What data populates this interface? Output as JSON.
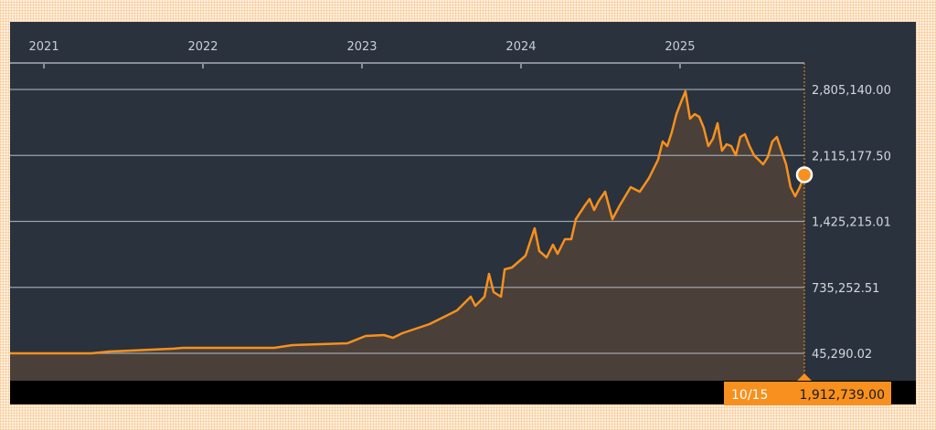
{
  "chart_data": {
    "type": "area",
    "title": "",
    "xlabel": "",
    "ylabel": "",
    "x_ticks": [
      "2021",
      "2022",
      "2023",
      "2024",
      "2025"
    ],
    "y_ticks": [
      "45,290.02",
      "735,252.51",
      "1,425,215.01",
      "2,115,177.50",
      "2,805,140.00"
    ],
    "y_tick_values": [
      45290.02,
      735252.51,
      1425215.01,
      2115177.5,
      2805140.0
    ],
    "ylim": [
      45290.02,
      2805140.0
    ],
    "xlim": [
      2020.787,
      2025.782
    ],
    "grid": true,
    "series": [
      {
        "name": "price",
        "color": "#f7901e",
        "points": [
          [
            2020.787,
            45000
          ],
          [
            2021.299,
            45000
          ],
          [
            2021.414,
            64000
          ],
          [
            2021.816,
            94000
          ],
          [
            2021.874,
            103000
          ],
          [
            2022.448,
            103000
          ],
          [
            2022.563,
            131000
          ],
          [
            2022.908,
            150000
          ],
          [
            2023.023,
            227000
          ],
          [
            2023.138,
            236000
          ],
          [
            2023.195,
            208000
          ],
          [
            2023.253,
            255000
          ],
          [
            2023.425,
            351000
          ],
          [
            2023.54,
            446000
          ],
          [
            2023.598,
            494000
          ],
          [
            2023.655,
            590000
          ],
          [
            2023.684,
            637000
          ],
          [
            2023.713,
            542000
          ],
          [
            2023.77,
            637000
          ],
          [
            2023.799,
            876000
          ],
          [
            2023.828,
            685000
          ],
          [
            2023.874,
            637000
          ],
          [
            2023.897,
            924000
          ],
          [
            2023.943,
            943000
          ],
          [
            2024.029,
            1067000
          ],
          [
            2024.057,
            1210000
          ],
          [
            2024.086,
            1354000
          ],
          [
            2024.115,
            1115000
          ],
          [
            2024.161,
            1048000
          ],
          [
            2024.201,
            1182000
          ],
          [
            2024.23,
            1086000
          ],
          [
            2024.276,
            1239000
          ],
          [
            2024.316,
            1239000
          ],
          [
            2024.345,
            1449000
          ],
          [
            2024.402,
            1592000
          ],
          [
            2024.431,
            1659000
          ],
          [
            2024.46,
            1545000
          ],
          [
            2024.489,
            1640000
          ],
          [
            2024.529,
            1736000
          ],
          [
            2024.575,
            1449000
          ],
          [
            2024.621,
            1592000
          ],
          [
            2024.69,
            1783000
          ],
          [
            2024.747,
            1736000
          ],
          [
            2024.805,
            1879000
          ],
          [
            2024.862,
            2070000
          ],
          [
            2024.891,
            2261000
          ],
          [
            2024.92,
            2213000
          ],
          [
            2024.948,
            2356000
          ],
          [
            2024.977,
            2547000
          ],
          [
            2025.006,
            2671000
          ],
          [
            2025.034,
            2786000
          ],
          [
            2025.063,
            2500000
          ],
          [
            2025.092,
            2547000
          ],
          [
            2025.121,
            2519000
          ],
          [
            2025.149,
            2404000
          ],
          [
            2025.178,
            2213000
          ],
          [
            2025.207,
            2289000
          ],
          [
            2025.236,
            2452000
          ],
          [
            2025.264,
            2165000
          ],
          [
            2025.293,
            2232000
          ],
          [
            2025.322,
            2213000
          ],
          [
            2025.351,
            2117000
          ],
          [
            2025.379,
            2308000
          ],
          [
            2025.408,
            2337000
          ],
          [
            2025.437,
            2213000
          ],
          [
            2025.466,
            2117000
          ],
          [
            2025.494,
            2070000
          ],
          [
            2025.523,
            2022000
          ],
          [
            2025.552,
            2098000
          ],
          [
            2025.58,
            2261000
          ],
          [
            2025.609,
            2308000
          ],
          [
            2025.638,
            2165000
          ],
          [
            2025.667,
            2022000
          ],
          [
            2025.695,
            1783000
          ],
          [
            2025.724,
            1688000
          ],
          [
            2025.753,
            1783000
          ],
          [
            2025.782,
            1912739
          ]
        ]
      }
    ],
    "tooltip": {
      "date": "10/15",
      "value": "1,912,739.00"
    }
  }
}
